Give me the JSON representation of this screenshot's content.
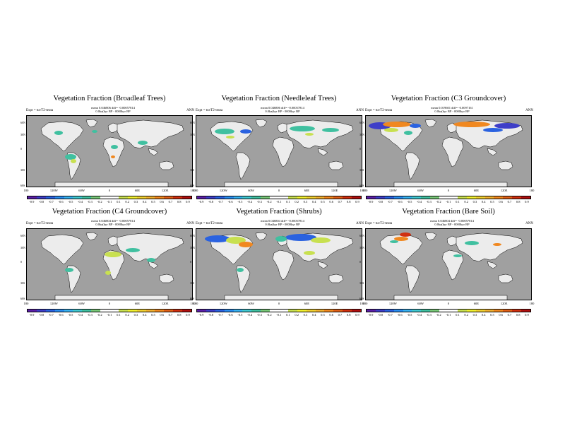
{
  "panels": [
    {
      "title": "Vegetation Fraction (Broadleaf Trees)",
      "stats1": "mean 0.046806 diff= -0.00057814",
      "stats2": "0.0ka(kyr BP - 0000kyr BP",
      "expt": "Expt = tuvT2-teuta",
      "season": "ANN",
      "cbar_labels": [
        "-0.9",
        "-0.8",
        "-0.7",
        "-0.6",
        "-0.5",
        "-0.4",
        "-0.3",
        "-0.2",
        "-0.1",
        "0.1",
        "0.2",
        "0.3",
        "0.4",
        "0.5",
        "0.6",
        "0.7",
        "0.8",
        "0.9"
      ]
    },
    {
      "title": "Vegetation Fraction (Needleleaf Trees)",
      "stats1": "mean 0.046806 diff= -0.00057814",
      "stats2": "0.0ka(kyr BP - 0000kyr BP",
      "expt": "Expt = tuvT2-teuta",
      "season": "ANN",
      "cbar_labels": [
        "-0.9",
        "-0.8",
        "-0.7",
        "-0.6",
        "-0.5",
        "-0.4",
        "-0.3",
        "-0.2",
        "-0.1",
        "0.1",
        "0.2",
        "0.3",
        "0.4",
        "0.5",
        "0.6",
        "0.7",
        "0.8",
        "0.9"
      ]
    },
    {
      "title": "Vegetation Fraction (C3 Groundcover)",
      "stats1": "mean 0.019601 diff= -0.0097161",
      "stats2": "0.0ka(kyr BP - 0000kyr BP",
      "expt": "Expt = tuvT2-teuta",
      "season": "ANN",
      "cbar_labels": [
        "-0.9",
        "-0.8",
        "-0.7",
        "-0.6",
        "-0.5",
        "-0.4",
        "-0.3",
        "-0.2",
        "-0.1",
        "0.1",
        "0.2",
        "0.3",
        "0.4",
        "0.5",
        "0.6",
        "0.7",
        "0.8",
        "0.9"
      ]
    },
    {
      "title": "Vegetation Fraction (C4 Groundcover)",
      "stats1": "mean 0.046804 diff= -0.00057814",
      "stats2": "0.0ka(kyr BP - 0000kyr BP",
      "expt": "Expt = tuvT2-teuta",
      "season": "ANN",
      "cbar_labels": [
        "-0.9",
        "-0.8",
        "-0.7",
        "-0.6",
        "-0.5",
        "-0.4",
        "-0.3",
        "-0.2",
        "-0.1",
        "0.1",
        "0.2",
        "0.3",
        "0.4",
        "0.5",
        "0.6",
        "0.7",
        "0.8",
        "0.9"
      ]
    },
    {
      "title": "Vegetation Fraction (Shrubs)",
      "stats1": "mean 0.046804 diff= -0.00057814",
      "stats2": "0.0ka(kyr BP - 0000kyr BP",
      "expt": "Expt = tuvT2-teuta",
      "season": "ANN",
      "cbar_labels": [
        "-0.9",
        "-0.8",
        "-0.7",
        "-0.6",
        "-0.5",
        "-0.4",
        "-0.3",
        "-0.2",
        "-0.1",
        "0.1",
        "0.2",
        "0.3",
        "0.4",
        "0.5",
        "0.6",
        "0.7",
        "0.8",
        "0.9"
      ]
    },
    {
      "title": "Vegetation Fraction (Bare Soil)",
      "stats1": "mean 0.046804 diff= -0.00057814",
      "stats2": "0.0ka(kyr BP - 0000kyr BP",
      "expt": "Expt = tuvT2-teuta",
      "season": "ANN",
      "cbar_labels": [
        "-0.9",
        "-0.8",
        "-0.7",
        "-0.6",
        "-0.5",
        "-0.4",
        "-0.3",
        "-0.2",
        "-0.1",
        "0.1",
        "0.2",
        "0.3",
        "0.4",
        "0.5",
        "0.6",
        "0.7",
        "0.8",
        "0.9"
      ]
    }
  ],
  "lat_labels": [
    "60N",
    "30N",
    "0",
    "30S",
    "60S"
  ],
  "lon_labels": [
    "180",
    "120W",
    "60W",
    "0",
    "60E",
    "120E",
    "180"
  ],
  "colors": {
    "ocean": "#a0a0a0",
    "land": "#ececec",
    "cbar": [
      "#5b1fa8",
      "#3e3ec8",
      "#2a62e0",
      "#2a8ef0",
      "#38b2f0",
      "#40c8d0",
      "#40c0a0",
      "#78c878",
      "#ffffff",
      "#ffffff",
      "#c8e050",
      "#f0f030",
      "#f0d030",
      "#f0b030",
      "#f08820",
      "#e06018",
      "#d03010",
      "#b01010"
    ],
    "neg_mid": "#40c0a0",
    "neg_strong": "#2a62e0",
    "neg_extreme": "#3e3ec8",
    "pos_mid": "#c8e050",
    "pos_strong": "#f08820",
    "pos_extreme": "#d03010"
  }
}
